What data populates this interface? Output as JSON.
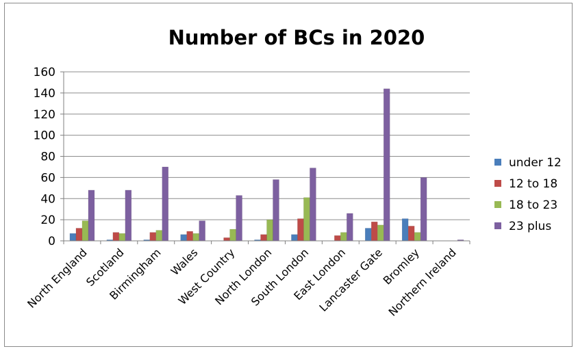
{
  "chart_data": {
    "type": "bar",
    "title": "Number of BCs in 2020",
    "xlabel": "",
    "ylabel": "",
    "ylim": [
      0,
      160
    ],
    "yticks": [
      0,
      20,
      40,
      60,
      80,
      100,
      120,
      140,
      160
    ],
    "grid": true,
    "legend_position": "right",
    "categories": [
      "North England",
      "Scotland",
      "Birmingham",
      "Wales",
      "West Country",
      "North London",
      "South London",
      "East London",
      "Lancaster Gate",
      "Bromley",
      "Northern Ireland"
    ],
    "series": [
      {
        "name": "under 12",
        "color": "#4a7ebb",
        "values": [
          7,
          1,
          1,
          6,
          0,
          1,
          6,
          0,
          12,
          21,
          0
        ]
      },
      {
        "name": "12 to 18",
        "color": "#be4b48",
        "values": [
          12,
          8,
          8,
          9,
          3,
          6,
          21,
          5,
          18,
          14,
          0
        ]
      },
      {
        "name": "18 to 23",
        "color": "#98b954",
        "values": [
          19,
          7,
          10,
          7,
          11,
          20,
          41,
          8,
          15,
          8,
          0
        ]
      },
      {
        "name": "23 plus",
        "color": "#7d60a0",
        "values": [
          48,
          48,
          70,
          19,
          43,
          58,
          69,
          26,
          144,
          60,
          1
        ]
      }
    ]
  }
}
